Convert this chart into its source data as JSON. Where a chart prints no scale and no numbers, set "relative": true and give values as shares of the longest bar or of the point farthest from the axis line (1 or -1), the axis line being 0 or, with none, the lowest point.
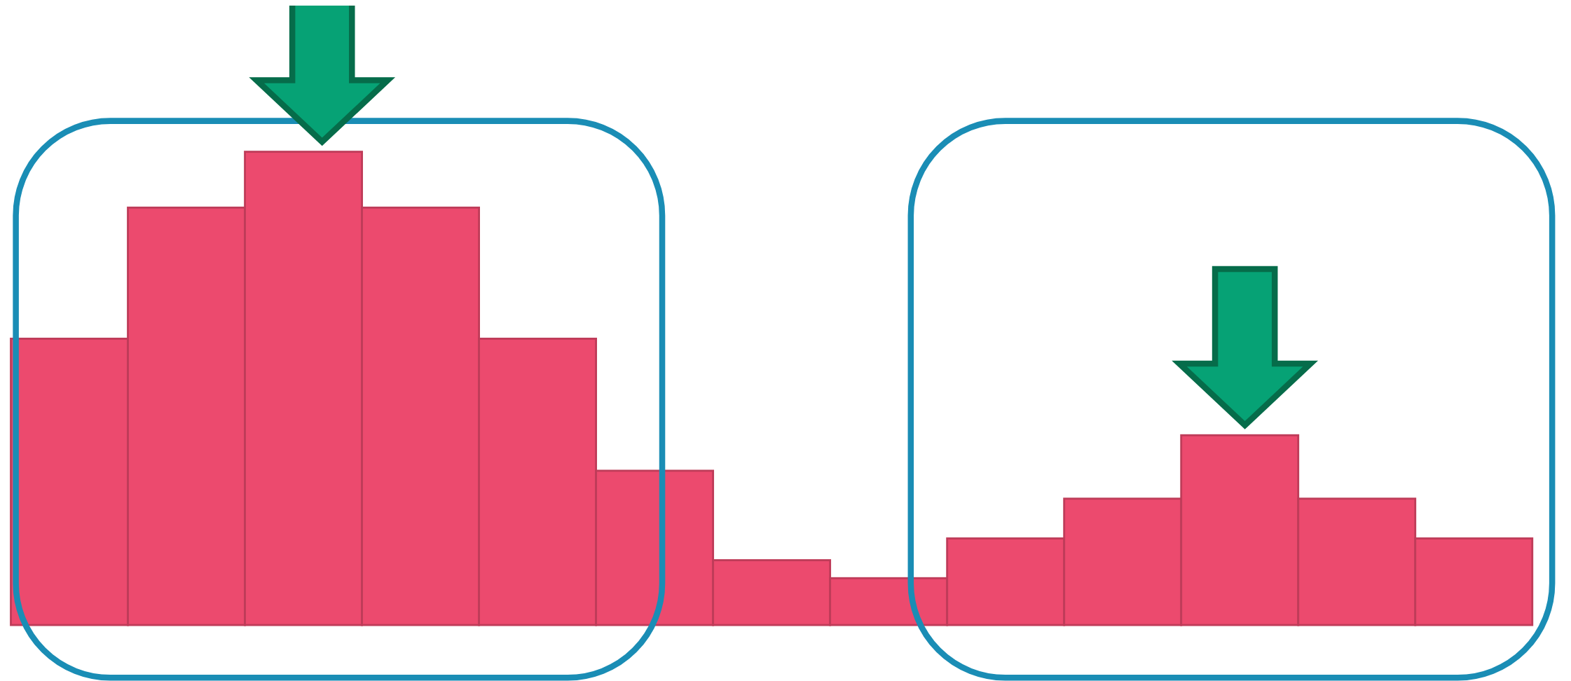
{
  "chart_data": {
    "type": "bar",
    "relative": true,
    "categories": [
      null,
      null,
      null,
      null,
      null,
      null,
      null,
      null,
      null,
      null,
      null,
      null,
      null
    ],
    "values": [
      0.605,
      0.882,
      1,
      0.882,
      0.605,
      0.326,
      0.137,
      0.099,
      0.183,
      0.267,
      0.401,
      0.267,
      0.183
    ],
    "color": "#ec4a6e"
  }
}
